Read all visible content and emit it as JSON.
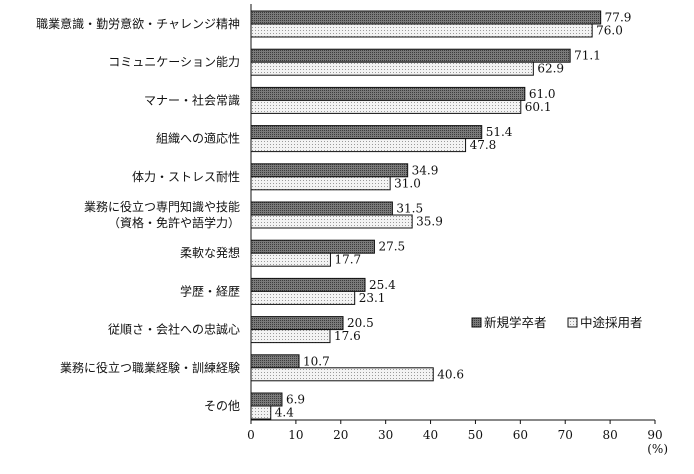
{
  "chart_data": {
    "type": "bar",
    "orientation": "horizontal",
    "categories": [
      [
        "職業意識・勤労意欲・チャレンジ精神"
      ],
      [
        "コミュニケーション能力"
      ],
      [
        "マナー・社会常識"
      ],
      [
        "組織への適応性"
      ],
      [
        "体力・ストレス耐性"
      ],
      [
        "業務に役立つ専門知識や技能",
        "（資格・免許や語学力）"
      ],
      [
        "柔軟な発想"
      ],
      [
        "学歴・経歴"
      ],
      [
        "従順さ・会社への忠誠心"
      ],
      [
        "業務に役立つ職業経験・訓練経験"
      ],
      [
        "その他"
      ]
    ],
    "series": [
      {
        "name": "新規学卒者",
        "color": "#808080",
        "pattern": "dots-dark",
        "values": [
          77.9,
          71.1,
          61.0,
          51.4,
          34.9,
          31.5,
          27.5,
          25.4,
          20.5,
          10.7,
          6.9
        ],
        "labels": [
          "77.9",
          "71.1",
          "61.0",
          "51.4",
          "34.9",
          "31.5",
          "27.5",
          "25.4",
          "20.5",
          "10.7",
          "6.9"
        ]
      },
      {
        "name": "中途採用者",
        "color": "#e8e8e8",
        "pattern": "dots-light",
        "values": [
          76.0,
          62.9,
          60.1,
          47.8,
          31.0,
          35.9,
          17.7,
          23.1,
          17.6,
          40.6,
          4.4
        ],
        "labels": [
          "76.0",
          "62.9",
          "60.1",
          "47.8",
          "31.0",
          "35.9",
          "17.7",
          "23.1",
          "17.6",
          "40.6",
          "4.4"
        ]
      }
    ],
    "xlim": [
      0,
      90
    ],
    "xticks": [
      "0",
      "10",
      "20",
      "30",
      "40",
      "50",
      "60",
      "70",
      "80",
      "90"
    ],
    "xunit": "(%)",
    "title": "",
    "xlabel": "",
    "ylabel": "",
    "grid": false,
    "legend_position": "right-lower"
  }
}
